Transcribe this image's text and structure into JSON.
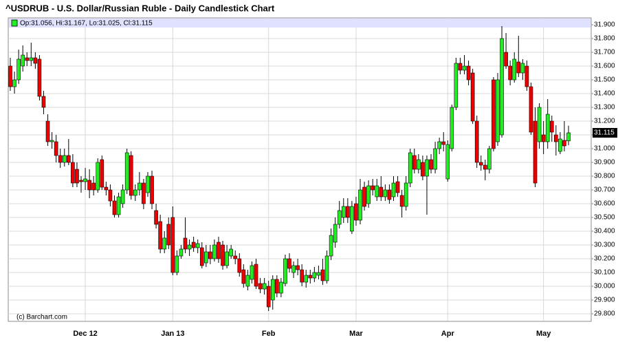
{
  "chart_data": {
    "type": "candlestick",
    "title": "^USDRUB - U.S. Dollar/Russian Ruble - Daily Candlestick Chart",
    "legend_text": "Op:31.056, Hi:31.167, Lo:31.025, Cl:31.115",
    "last_price": {
      "value": 31.115,
      "label": "31.115"
    },
    "credit": "(c) Barchart.com",
    "up_color": "#22ee22",
    "down_color": "#ee0000",
    "grid": true,
    "ylim": [
      29.75,
      31.95
    ],
    "yticks": [
      {
        "value": 29.8,
        "label": "29.800"
      },
      {
        "value": 29.9,
        "label": "29.900"
      },
      {
        "value": 30.0,
        "label": "30.000"
      },
      {
        "value": 30.1,
        "label": "30.100"
      },
      {
        "value": 30.2,
        "label": "30.200"
      },
      {
        "value": 30.3,
        "label": "30.300"
      },
      {
        "value": 30.4,
        "label": "30.400"
      },
      {
        "value": 30.5,
        "label": "30.500"
      },
      {
        "value": 30.6,
        "label": "30.600"
      },
      {
        "value": 30.7,
        "label": "30.700"
      },
      {
        "value": 30.8,
        "label": "30.800"
      },
      {
        "value": 30.9,
        "label": "30.900"
      },
      {
        "value": 31.0,
        "label": "31.000"
      },
      {
        "value": 31.1,
        "label": "31.100"
      },
      {
        "value": 31.2,
        "label": "31.200"
      },
      {
        "value": 31.3,
        "label": "31.300"
      },
      {
        "value": 31.4,
        "label": "31.400"
      },
      {
        "value": 31.5,
        "label": "31.500"
      },
      {
        "value": 31.6,
        "label": "31.600"
      },
      {
        "value": 31.7,
        "label": "31.700"
      },
      {
        "value": 31.8,
        "label": "31.800"
      },
      {
        "value": 31.9,
        "label": "31.900"
      }
    ],
    "categories": [
      null,
      null,
      null,
      null,
      null,
      null,
      null,
      null,
      null,
      null,
      null,
      null,
      null,
      null,
      null,
      null,
      null,
      null,
      "Dec 12",
      null,
      null,
      null,
      null,
      null,
      null,
      null,
      null,
      null,
      null,
      null,
      null,
      null,
      null,
      null,
      null,
      null,
      null,
      null,
      null,
      "Jan 13",
      null,
      null,
      null,
      null,
      null,
      null,
      null,
      null,
      null,
      null,
      null,
      null,
      null,
      null,
      null,
      null,
      null,
      null,
      null,
      null,
      null,
      null,
      "Feb",
      null,
      null,
      null,
      null,
      null,
      null,
      null,
      null,
      null,
      null,
      null,
      null,
      null,
      null,
      null,
      null,
      null,
      null,
      null,
      null,
      "Mar",
      null,
      null,
      null,
      null,
      null,
      null,
      null,
      null,
      null,
      null,
      null,
      null,
      null,
      null,
      null,
      null,
      null,
      null,
      null,
      null,
      null,
      "Apr",
      null,
      null,
      null,
      null,
      null,
      null,
      null,
      null,
      null,
      null,
      null,
      null,
      null,
      null,
      null,
      null,
      null,
      null,
      null,
      null,
      null,
      null,
      "May",
      null,
      null,
      null,
      null,
      null,
      null
    ],
    "ohlc": [
      [
        31.6,
        31.66,
        31.42,
        31.45
      ],
      [
        31.45,
        31.56,
        31.4,
        31.5
      ],
      [
        31.5,
        31.72,
        31.47,
        31.65
      ],
      [
        31.6,
        31.75,
        31.56,
        31.68
      ],
      [
        31.66,
        31.7,
        31.6,
        31.64
      ],
      [
        31.64,
        31.77,
        31.6,
        31.66
      ],
      [
        31.66,
        31.7,
        31.58,
        31.62
      ],
      [
        31.65,
        31.68,
        31.35,
        31.38
      ],
      [
        31.38,
        31.42,
        31.25,
        31.3
      ],
      [
        31.2,
        31.25,
        31.02,
        31.05
      ],
      [
        31.05,
        31.12,
        31.0,
        31.06
      ],
      [
        31.05,
        31.1,
        30.9,
        30.95
      ],
      [
        30.95,
        31.0,
        30.86,
        30.9
      ],
      [
        30.9,
        31.0,
        30.87,
        30.95
      ],
      [
        30.95,
        31.07,
        30.88,
        30.9
      ],
      [
        30.9,
        30.96,
        30.72,
        30.75
      ],
      [
        30.85,
        30.9,
        30.72,
        30.75
      ],
      [
        30.77,
        30.8,
        30.68,
        30.76
      ],
      [
        30.76,
        30.86,
        30.7,
        30.78
      ],
      [
        30.77,
        30.85,
        30.64,
        30.7
      ],
      [
        30.75,
        30.8,
        30.66,
        30.7
      ],
      [
        30.7,
        30.93,
        30.68,
        30.9
      ],
      [
        30.92,
        30.95,
        30.7,
        30.72
      ],
      [
        30.72,
        30.76,
        30.66,
        30.7
      ],
      [
        30.7,
        30.74,
        30.58,
        30.62
      ],
      [
        30.62,
        30.66,
        30.5,
        30.52
      ],
      [
        30.52,
        30.68,
        30.5,
        30.65
      ],
      [
        30.6,
        30.74,
        30.57,
        30.7
      ],
      [
        30.7,
        31.0,
        30.67,
        30.97
      ],
      [
        30.95,
        30.98,
        30.63,
        30.66
      ],
      [
        30.66,
        30.74,
        30.62,
        30.7
      ],
      [
        30.7,
        30.83,
        30.66,
        30.75
      ],
      [
        30.75,
        30.78,
        30.56,
        30.6
      ],
      [
        30.68,
        30.83,
        30.65,
        30.8
      ],
      [
        30.8,
        30.84,
        30.56,
        30.6
      ],
      [
        30.55,
        30.6,
        30.42,
        30.45
      ],
      [
        30.47,
        30.52,
        30.24,
        30.27
      ],
      [
        30.27,
        30.4,
        30.24,
        30.35
      ],
      [
        30.45,
        30.5,
        30.27,
        30.3
      ],
      [
        30.5,
        30.58,
        30.08,
        30.1
      ],
      [
        30.1,
        30.26,
        30.08,
        30.22
      ],
      [
        30.22,
        30.3,
        30.2,
        30.27
      ],
      [
        30.35,
        30.5,
        30.24,
        30.27
      ],
      [
        30.27,
        30.34,
        30.22,
        30.3
      ],
      [
        30.32,
        30.36,
        30.25,
        30.28
      ],
      [
        30.28,
        30.34,
        30.24,
        30.31
      ],
      [
        30.28,
        30.32,
        30.13,
        30.15
      ],
      [
        30.17,
        30.3,
        30.14,
        30.25
      ],
      [
        30.25,
        30.3,
        30.16,
        30.2
      ],
      [
        30.2,
        30.34,
        30.18,
        30.3
      ],
      [
        30.32,
        30.36,
        30.17,
        30.2
      ],
      [
        30.3,
        30.33,
        30.12,
        30.15
      ],
      [
        30.15,
        30.3,
        30.13,
        30.25
      ],
      [
        30.22,
        30.3,
        30.2,
        30.27
      ],
      [
        30.22,
        30.26,
        30.16,
        30.2
      ],
      [
        30.2,
        30.24,
        30.07,
        30.1
      ],
      [
        30.12,
        30.16,
        29.99,
        30.02
      ],
      [
        30.0,
        30.12,
        29.97,
        30.08
      ],
      [
        30.05,
        30.18,
        30.02,
        30.15
      ],
      [
        30.16,
        30.2,
        29.98,
        30.0
      ],
      [
        30.02,
        30.06,
        29.95,
        29.98
      ],
      [
        29.98,
        30.06,
        29.94,
        30.02
      ],
      [
        30.0,
        30.04,
        29.82,
        29.85
      ],
      [
        29.9,
        30.08,
        29.83,
        30.05
      ],
      [
        30.05,
        30.08,
        29.92,
        29.95
      ],
      [
        29.95,
        30.06,
        29.92,
        30.03
      ],
      [
        30.02,
        30.23,
        30.0,
        30.2
      ],
      [
        30.2,
        30.24,
        30.1,
        30.13
      ],
      [
        30.1,
        30.18,
        30.06,
        30.15
      ],
      [
        30.15,
        30.2,
        30.08,
        30.12
      ],
      [
        30.12,
        30.16,
        30.0,
        30.03
      ],
      [
        30.03,
        30.12,
        29.99,
        30.08
      ],
      [
        30.08,
        30.12,
        30.02,
        30.06
      ],
      [
        30.06,
        30.14,
        30.03,
        30.1
      ],
      [
        30.08,
        30.15,
        30.05,
        30.1
      ],
      [
        30.12,
        30.2,
        30.01,
        30.04
      ],
      [
        30.04,
        30.26,
        30.02,
        30.22
      ],
      [
        30.22,
        30.42,
        30.19,
        30.37
      ],
      [
        30.32,
        30.5,
        30.28,
        30.45
      ],
      [
        30.45,
        30.62,
        30.42,
        30.55
      ],
      [
        30.5,
        30.64,
        30.46,
        30.58
      ],
      [
        30.58,
        30.64,
        30.46,
        30.5
      ],
      [
        30.4,
        30.62,
        30.38,
        30.58
      ],
      [
        30.6,
        30.65,
        30.44,
        30.48
      ],
      [
        30.48,
        30.78,
        30.45,
        30.7
      ],
      [
        30.72,
        30.76,
        30.55,
        30.58
      ],
      [
        30.6,
        30.77,
        30.57,
        30.73
      ],
      [
        30.73,
        30.78,
        30.66,
        30.7
      ],
      [
        30.65,
        30.78,
        30.62,
        30.73
      ],
      [
        30.72,
        30.8,
        30.62,
        30.65
      ],
      [
        30.65,
        30.74,
        30.62,
        30.7
      ],
      [
        30.7,
        30.74,
        30.6,
        30.63
      ],
      [
        30.65,
        30.8,
        30.62,
        30.75
      ],
      [
        30.76,
        30.8,
        30.65,
        30.68
      ],
      [
        30.66,
        30.7,
        30.5,
        30.58
      ],
      [
        30.58,
        30.8,
        30.55,
        30.75
      ],
      [
        30.75,
        31.0,
        30.72,
        30.97
      ],
      [
        30.95,
        31.0,
        30.82,
        30.85
      ],
      [
        30.85,
        30.96,
        30.82,
        30.92
      ],
      [
        30.9,
        30.95,
        30.77,
        30.8
      ],
      [
        30.8,
        30.95,
        30.52,
        30.92
      ],
      [
        30.92,
        30.96,
        30.82,
        30.85
      ],
      [
        30.85,
        31.05,
        30.82,
        31.0
      ],
      [
        31.0,
        31.08,
        30.96,
        31.05
      ],
      [
        31.05,
        31.12,
        30.98,
        31.03
      ],
      [
        30.78,
        31.06,
        30.76,
        31.03
      ],
      [
        31.0,
        31.32,
        30.98,
        31.3
      ],
      [
        31.3,
        31.66,
        31.28,
        31.62
      ],
      [
        31.62,
        31.66,
        31.54,
        31.57
      ],
      [
        31.57,
        31.68,
        31.54,
        31.6
      ],
      [
        31.6,
        31.64,
        31.46,
        31.5
      ],
      [
        31.55,
        31.58,
        31.18,
        31.2
      ],
      [
        31.2,
        31.24,
        30.86,
        30.9
      ],
      [
        30.9,
        30.95,
        30.84,
        30.88
      ],
      [
        30.88,
        30.92,
        30.77,
        30.85
      ],
      [
        30.85,
        31.02,
        30.82,
        31.0
      ],
      [
        31.5,
        31.52,
        30.98,
        31.0
      ],
      [
        31.05,
        31.55,
        31.02,
        31.5
      ],
      [
        31.1,
        31.89,
        31.08,
        31.8
      ],
      [
        31.7,
        31.84,
        31.58,
        31.6
      ],
      [
        31.6,
        31.64,
        31.46,
        31.5
      ],
      [
        31.5,
        31.7,
        31.48,
        31.65
      ],
      [
        31.63,
        31.82,
        31.52,
        31.55
      ],
      [
        31.55,
        31.65,
        31.5,
        31.62
      ],
      [
        31.6,
        31.64,
        31.42,
        31.45
      ],
      [
        31.45,
        31.48,
        31.1,
        31.12
      ],
      [
        31.2,
        31.3,
        30.72,
        30.75
      ],
      [
        31.05,
        31.33,
        31.0,
        31.3
      ],
      [
        31.1,
        31.2,
        30.96,
        31.05
      ],
      [
        31.05,
        31.36,
        31.0,
        31.25
      ],
      [
        31.2,
        31.24,
        31.05,
        31.12
      ],
      [
        31.1,
        31.17,
        30.95,
        31.05
      ],
      [
        30.98,
        31.12,
        30.96,
        31.07
      ],
      [
        31.06,
        31.2,
        30.98,
        31.02
      ],
      [
        31.056,
        31.167,
        31.025,
        31.115
      ]
    ]
  }
}
